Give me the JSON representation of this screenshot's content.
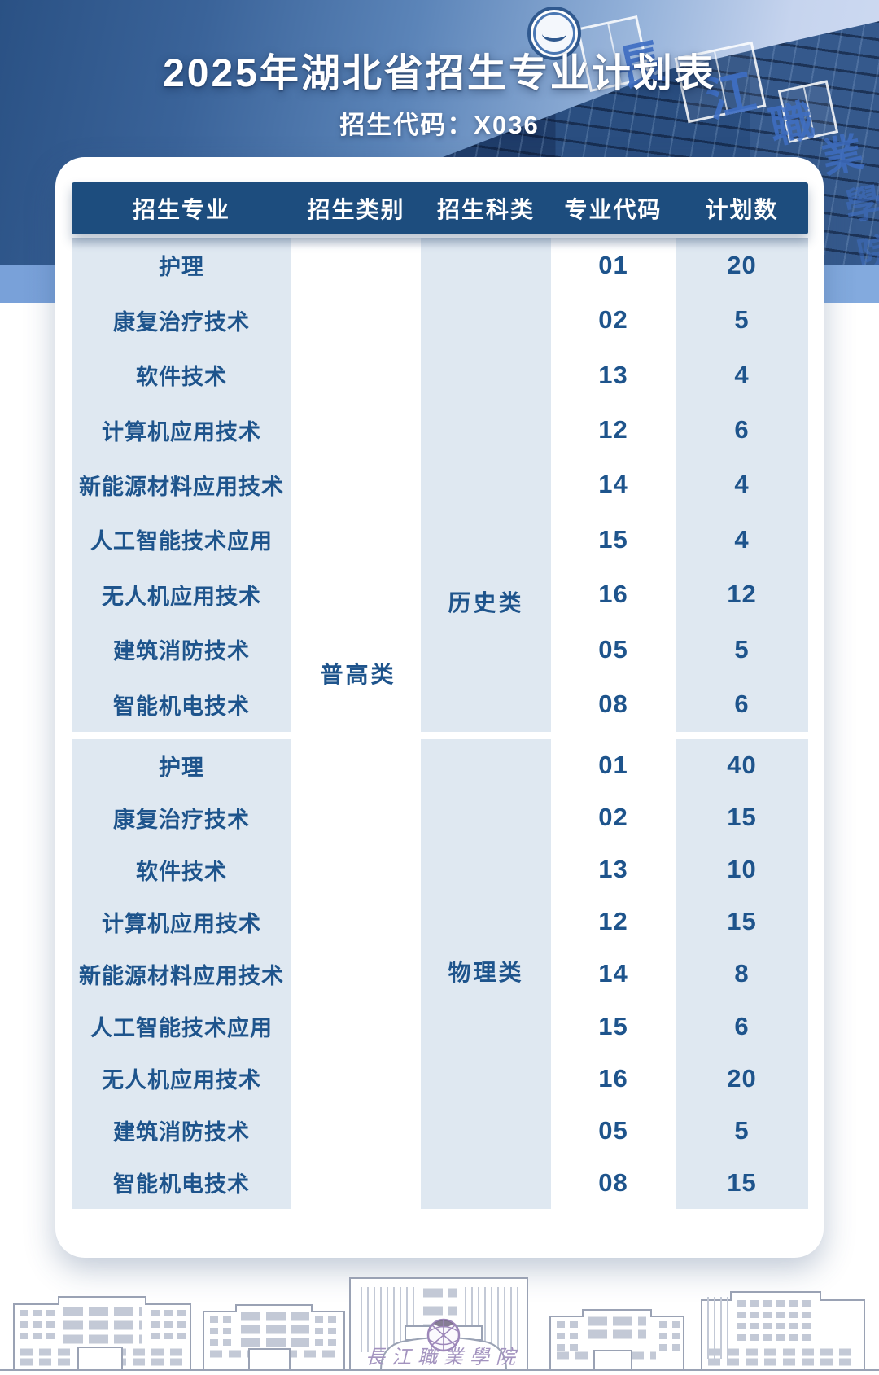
{
  "page": {
    "title": "2025年湖北省招生专业计划表",
    "subtitle": "招生代码：X036"
  },
  "hero": {
    "rooftop_sign": "長江職業學院"
  },
  "table": {
    "headers": [
      "招生专业",
      "招生类别",
      "招生科类",
      "专业代码",
      "计划数"
    ],
    "category_label": "普高类",
    "sections": [
      {
        "subject_type": "历史类",
        "rows": [
          {
            "major": "护理",
            "code": "01",
            "plan": "20"
          },
          {
            "major": "康复治疗技术",
            "code": "02",
            "plan": "5"
          },
          {
            "major": "软件技术",
            "code": "13",
            "plan": "4"
          },
          {
            "major": "计算机应用技术",
            "code": "12",
            "plan": "6"
          },
          {
            "major": "新能源材料应用技术",
            "code": "14",
            "plan": "4"
          },
          {
            "major": "人工智能技术应用",
            "code": "15",
            "plan": "4"
          },
          {
            "major": "无人机应用技术",
            "code": "16",
            "plan": "12"
          },
          {
            "major": "建筑消防技术",
            "code": "05",
            "plan": "5"
          },
          {
            "major": "智能机电技术",
            "code": "08",
            "plan": "6"
          }
        ]
      },
      {
        "subject_type": "物理类",
        "rows": [
          {
            "major": "护理",
            "code": "01",
            "plan": "40"
          },
          {
            "major": "康复治疗技术",
            "code": "02",
            "plan": "15"
          },
          {
            "major": "软件技术",
            "code": "13",
            "plan": "10"
          },
          {
            "major": "计算机应用技术",
            "code": "12",
            "plan": "15"
          },
          {
            "major": "新能源材料应用技术",
            "code": "14",
            "plan": "8"
          },
          {
            "major": "人工智能技术应用",
            "code": "15",
            "plan": "6"
          },
          {
            "major": "无人机应用技术",
            "code": "16",
            "plan": "20"
          },
          {
            "major": "建筑消防技术",
            "code": "05",
            "plan": "5"
          },
          {
            "major": "智能机电技术",
            "code": "08",
            "plan": "15"
          }
        ]
      }
    ]
  },
  "footer": {
    "gate_sign": "長江職業學院"
  },
  "colors": {
    "header_bar": "#1d4d7e",
    "shaded_column": "#dfe8f1",
    "text_blue": "#1e548c",
    "band_blue": "#7da4db",
    "accent_purple": "#a393bf"
  }
}
